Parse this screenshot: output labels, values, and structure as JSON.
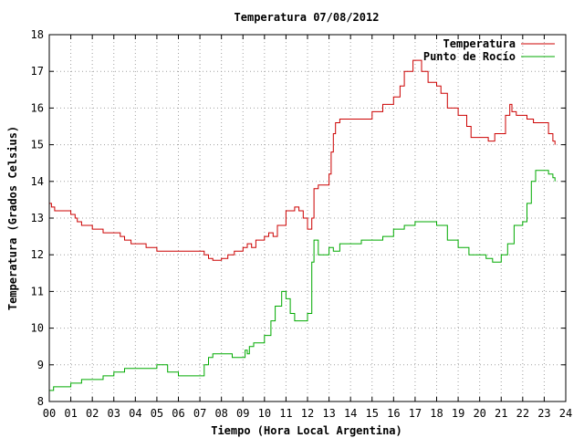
{
  "chart_data": {
    "type": "line",
    "title": "Temperatura 07/08/2012",
    "xlabel": "Tiempo (Hora Local Argentina)",
    "ylabel": "Temperatura (Grados Celsius)",
    "xlim": [
      0,
      24
    ],
    "ylim": [
      8,
      18
    ],
    "x_ticks": [
      "00",
      "01",
      "02",
      "03",
      "04",
      "05",
      "06",
      "07",
      "08",
      "09",
      "10",
      "11",
      "12",
      "13",
      "14",
      "15",
      "16",
      "17",
      "18",
      "19",
      "20",
      "21",
      "22",
      "23",
      "24"
    ],
    "y_ticks": [
      8,
      9,
      10,
      11,
      12,
      13,
      14,
      15,
      16,
      17,
      18
    ],
    "grid": true,
    "legend_position": "top-right",
    "series": [
      {
        "name": "Temperatura",
        "color": "#cc0000",
        "x": [
          0,
          0.1,
          0.25,
          0.5,
          1.0,
          1.2,
          1.3,
          1.5,
          2.0,
          2.5,
          3.0,
          3.3,
          3.5,
          3.8,
          4.0,
          4.5,
          5.0,
          5.5,
          6.0,
          6.5,
          7.0,
          7.2,
          7.4,
          7.6,
          8.0,
          8.3,
          8.6,
          9.0,
          9.2,
          9.4,
          9.6,
          10.0,
          10.2,
          10.4,
          10.6,
          11.0,
          11.2,
          11.4,
          11.6,
          11.8,
          12.0,
          12.1,
          12.2,
          12.3,
          12.5,
          12.7,
          13.0,
          13.1,
          13.2,
          13.3,
          13.5,
          14.0,
          14.5,
          15.0,
          15.5,
          16.0,
          16.3,
          16.5,
          16.9,
          17.1,
          17.3,
          17.6,
          18.0,
          18.2,
          18.5,
          19.0,
          19.4,
          19.6,
          20.0,
          20.4,
          20.7,
          21.0,
          21.2,
          21.4,
          21.5,
          21.7,
          22.0,
          22.2,
          22.5,
          23.0,
          23.2,
          23.4,
          23.5
        ],
        "y": [
          13.4,
          13.3,
          13.2,
          13.2,
          13.1,
          13.0,
          12.9,
          12.8,
          12.7,
          12.6,
          12.6,
          12.5,
          12.4,
          12.3,
          12.3,
          12.2,
          12.1,
          12.1,
          12.1,
          12.1,
          12.1,
          12.0,
          11.9,
          11.85,
          11.9,
          12.0,
          12.1,
          12.2,
          12.3,
          12.2,
          12.4,
          12.5,
          12.6,
          12.5,
          12.8,
          13.2,
          13.2,
          13.3,
          13.2,
          13.0,
          12.7,
          12.7,
          13.0,
          13.8,
          13.9,
          13.9,
          14.2,
          14.8,
          15.3,
          15.6,
          15.7,
          15.7,
          15.7,
          15.9,
          16.1,
          16.3,
          16.6,
          17.0,
          17.3,
          17.3,
          17.0,
          16.7,
          16.6,
          16.4,
          16.0,
          15.8,
          15.5,
          15.2,
          15.2,
          15.1,
          15.3,
          15.3,
          15.8,
          16.1,
          15.9,
          15.8,
          15.8,
          15.7,
          15.6,
          15.6,
          15.3,
          15.1,
          15.0
        ]
      },
      {
        "name": "Punto de Rocío",
        "color": "#00aa00",
        "x": [
          0,
          0.2,
          0.5,
          1.0,
          1.5,
          2.0,
          2.5,
          3.0,
          3.5,
          4.0,
          4.5,
          5.0,
          5.5,
          6.0,
          6.5,
          7.0,
          7.2,
          7.4,
          7.6,
          8.0,
          8.5,
          9.0,
          9.1,
          9.2,
          9.3,
          9.5,
          10.0,
          10.3,
          10.5,
          10.8,
          11.0,
          11.2,
          11.4,
          11.6,
          12.0,
          12.2,
          12.3,
          12.5,
          12.8,
          13.0,
          13.2,
          13.5,
          14.0,
          14.5,
          15.0,
          15.5,
          16.0,
          16.5,
          17.0,
          17.5,
          18.0,
          18.5,
          19.0,
          19.5,
          20.0,
          20.3,
          20.6,
          21.0,
          21.3,
          21.6,
          22.0,
          22.2,
          22.4,
          22.6,
          23.0,
          23.2,
          23.4,
          23.5
        ],
        "y": [
          8.3,
          8.4,
          8.4,
          8.5,
          8.6,
          8.6,
          8.7,
          8.8,
          8.9,
          8.9,
          8.9,
          9.0,
          8.8,
          8.7,
          8.7,
          8.7,
          9.0,
          9.2,
          9.3,
          9.3,
          9.2,
          9.2,
          9.4,
          9.3,
          9.5,
          9.6,
          9.8,
          10.2,
          10.6,
          11.0,
          10.8,
          10.4,
          10.2,
          10.2,
          10.4,
          11.8,
          12.4,
          12.0,
          12.0,
          12.2,
          12.1,
          12.3,
          12.3,
          12.4,
          12.4,
          12.5,
          12.7,
          12.8,
          12.9,
          12.9,
          12.8,
          12.4,
          12.2,
          12.0,
          12.0,
          11.9,
          11.8,
          12.0,
          12.3,
          12.8,
          12.9,
          13.4,
          14.0,
          14.3,
          14.3,
          14.2,
          14.1,
          14.0
        ]
      }
    ]
  }
}
